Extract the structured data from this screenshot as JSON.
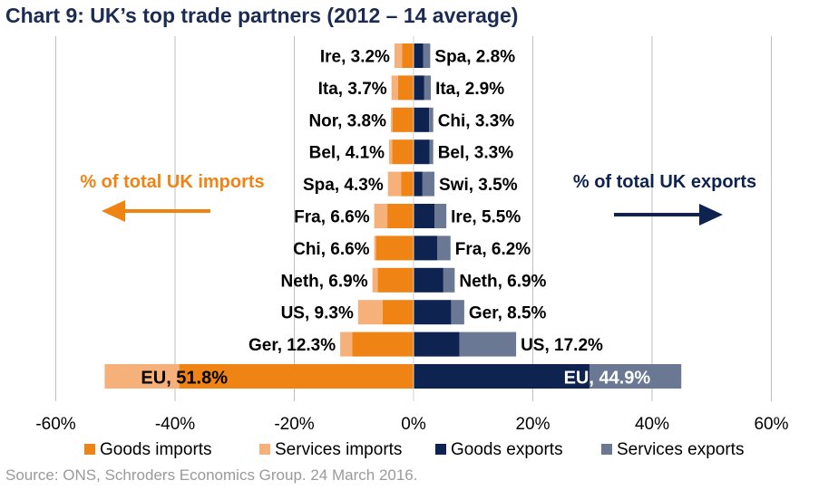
{
  "title": "Chart 9: UK’s top trade partners (2012 – 14 average)",
  "source": "Source: ONS, Schroders Economics Group. 24 March 2016.",
  "colors": {
    "goods_imports": "#ef8313",
    "services_imports": "#f6b07a",
    "goods_exports": "#0f2350",
    "services_exports": "#6a7894",
    "title": "#1b2b54",
    "imports_annotation": "#ef8313",
    "exports_annotation": "#0f2350",
    "grid": "#bfbfbf"
  },
  "annotations": {
    "imports": "% of total UK imports",
    "exports": "% of total UK exports"
  },
  "chart_data": {
    "type": "bar",
    "orientation": "horizontal-diverging-stacked",
    "xlim": [
      -60,
      60
    ],
    "x_ticks": [
      -60,
      -40,
      -20,
      0,
      20,
      40,
      60
    ],
    "x_tick_labels": [
      "-60%",
      "-40%",
      "-20%",
      "0%",
      "20%",
      "40%",
      "60%"
    ],
    "grid": true,
    "legend_position": "bottom",
    "series": [
      {
        "name": "Goods imports",
        "key": "goods_imports"
      },
      {
        "name": "Services imports",
        "key": "services_imports"
      },
      {
        "name": "Goods exports",
        "key": "goods_exports"
      },
      {
        "name": "Services exports",
        "key": "services_exports"
      }
    ],
    "rows": [
      {
        "import_label": "Ire, 3.2%",
        "goods_imports": 1.9,
        "services_imports": 1.3,
        "export_label": "Spa, 2.8%",
        "goods_exports": 1.6,
        "services_exports": 1.2
      },
      {
        "import_label": "Ita, 3.7%",
        "goods_imports": 2.6,
        "services_imports": 1.1,
        "export_label": "Ita, 2.9%",
        "goods_exports": 1.8,
        "services_exports": 1.1
      },
      {
        "import_label": "Nor, 3.8%",
        "goods_imports": 3.5,
        "services_imports": 0.3,
        "export_label": "Chi, 3.3%",
        "goods_exports": 2.6,
        "services_exports": 0.7
      },
      {
        "import_label": "Bel, 4.1%",
        "goods_imports": 3.6,
        "services_imports": 0.5,
        "export_label": "Bel, 3.3%",
        "goods_exports": 2.7,
        "services_exports": 0.6
      },
      {
        "import_label": "Spa, 4.3%",
        "goods_imports": 2.1,
        "services_imports": 2.2,
        "export_label": "Swi, 3.5%",
        "goods_exports": 1.5,
        "services_exports": 2.0
      },
      {
        "import_label": "Fra, 6.6%",
        "goods_imports": 4.4,
        "services_imports": 2.2,
        "export_label": "Ire, 5.5%",
        "goods_exports": 3.5,
        "services_exports": 2.0
      },
      {
        "import_label": "Chi, 6.6%",
        "goods_imports": 6.3,
        "services_imports": 0.3,
        "export_label": "Fra, 6.2%",
        "goods_exports": 4.0,
        "services_exports": 2.2
      },
      {
        "import_label": "Neth, 6.9%",
        "goods_imports": 6.0,
        "services_imports": 0.9,
        "export_label": "Neth, 6.9%",
        "goods_exports": 5.0,
        "services_exports": 1.9
      },
      {
        "import_label": "US, 9.3%",
        "goods_imports": 5.2,
        "services_imports": 4.1,
        "export_label": "Ger, 8.5%",
        "goods_exports": 6.3,
        "services_exports": 2.2
      },
      {
        "import_label": "Ger, 12.3%",
        "goods_imports": 10.3,
        "services_imports": 2.0,
        "export_label": "US, 17.2%",
        "goods_exports": 7.7,
        "services_exports": 9.5
      },
      {
        "import_label": "EU, 51.8%",
        "goods_imports": 39.3,
        "services_imports": 12.5,
        "export_label": "EU, 44.9%",
        "goods_exports": 29.5,
        "services_exports": 15.4
      }
    ]
  }
}
